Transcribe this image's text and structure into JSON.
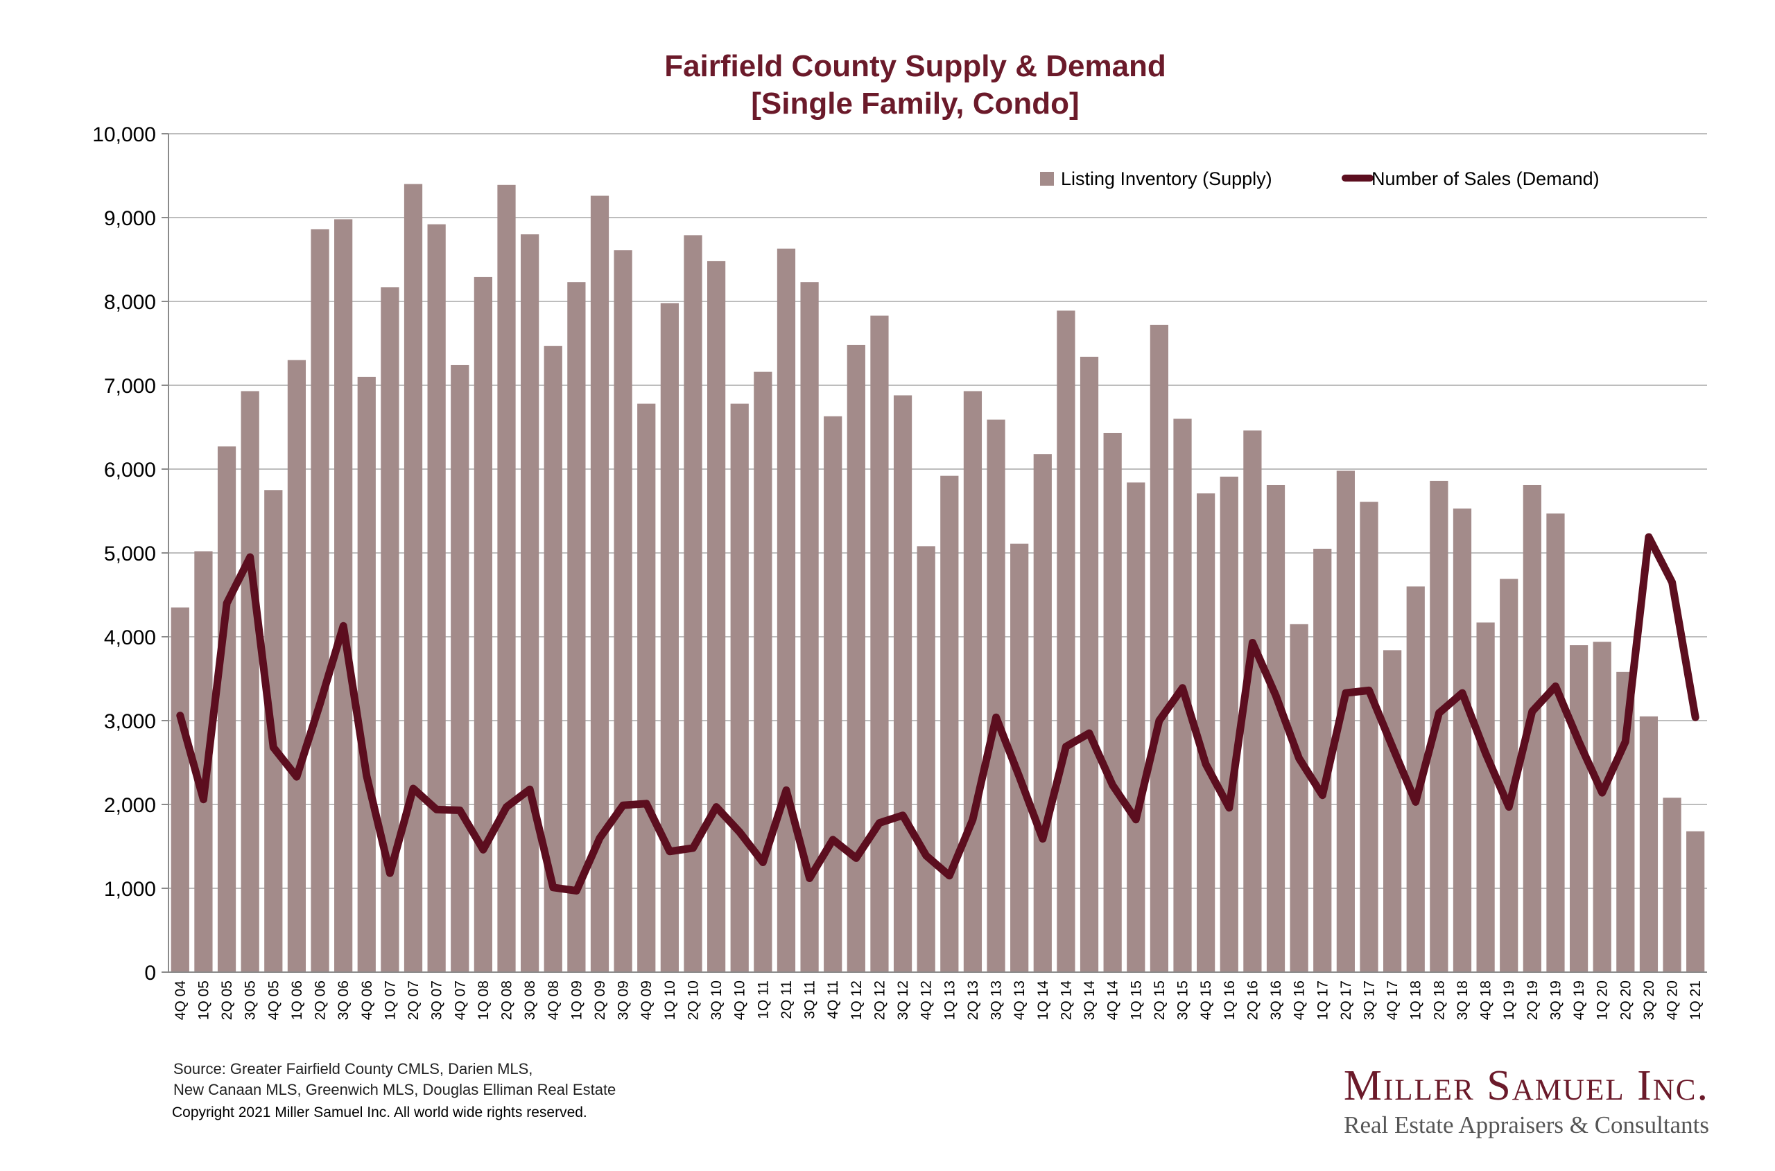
{
  "colors": {
    "bar": "#a38b8a",
    "line": "#5c0e1f",
    "title": "#6b1a2a",
    "grid": "#bdbdbd"
  },
  "chart_data": {
    "type": "bar",
    "title": "Fairfield County Supply & Demand",
    "subtitle": "[Single Family, Condo]",
    "xlabel": "",
    "ylabel": "",
    "ylim": [
      0,
      10000
    ],
    "yticks": [
      0,
      1000,
      2000,
      3000,
      4000,
      5000,
      6000,
      7000,
      8000,
      9000,
      10000
    ],
    "ytick_labels": [
      "0",
      "1,000",
      "2,000",
      "3,000",
      "4,000",
      "5,000",
      "6,000",
      "7,000",
      "8,000",
      "9,000",
      "10,000"
    ],
    "grid": true,
    "legend_position": "top-right",
    "categories": [
      "4Q 04",
      "1Q 05",
      "2Q 05",
      "3Q 05",
      "4Q 05",
      "1Q 06",
      "2Q 06",
      "3Q 06",
      "4Q 06",
      "1Q 07",
      "2Q 07",
      "3Q 07",
      "4Q 07",
      "1Q 08",
      "2Q 08",
      "3Q 08",
      "4Q 08",
      "1Q 09",
      "2Q 09",
      "3Q 09",
      "4Q 09",
      "1Q 10",
      "2Q 10",
      "3Q 10",
      "4Q 10",
      "1Q 11",
      "2Q 11",
      "3Q 11",
      "4Q 11",
      "1Q 12",
      "2Q 12",
      "3Q 12",
      "4Q 12",
      "1Q 13",
      "2Q 13",
      "3Q 13",
      "4Q 13",
      "1Q 14",
      "2Q 14",
      "3Q 14",
      "4Q 14",
      "1Q 15",
      "2Q 15",
      "3Q 15",
      "4Q 15",
      "1Q 16",
      "2Q 16",
      "3Q 16",
      "4Q 16",
      "1Q 17",
      "2Q 17",
      "3Q 17",
      "4Q 17",
      "1Q 18",
      "2Q 18",
      "3Q 18",
      "4Q 18",
      "1Q 19",
      "2Q 19",
      "3Q 19",
      "4Q 19",
      "1Q 20",
      "2Q 20",
      "3Q 20",
      "4Q 20",
      "1Q 21"
    ],
    "series": [
      {
        "name": "Listing Inventory (Supply)",
        "type": "bar",
        "values": [
          4350,
          5020,
          6270,
          6930,
          5750,
          7300,
          8860,
          8980,
          7100,
          8170,
          9400,
          8920,
          7240,
          8290,
          9390,
          8800,
          7470,
          8230,
          9260,
          8610,
          6780,
          7980,
          8790,
          8480,
          6780,
          7160,
          8630,
          8230,
          6630,
          7480,
          7830,
          6880,
          5080,
          5920,
          6930,
          6590,
          5110,
          6180,
          7890,
          7340,
          6430,
          5840,
          7720,
          6600,
          5710,
          5910,
          6460,
          5810,
          4150,
          5050,
          5980,
          5610,
          3840,
          4600,
          5860,
          5530,
          4170,
          4690,
          5810,
          5470,
          3900,
          3940,
          3580,
          3050,
          2080,
          1680
        ]
      },
      {
        "name": "Number of Sales (Demand)",
        "type": "line",
        "values": [
          3060,
          2060,
          4400,
          4950,
          2680,
          2330,
          3200,
          4130,
          2340,
          1180,
          2190,
          1940,
          1930,
          1460,
          1970,
          2180,
          1010,
          970,
          1600,
          1990,
          2010,
          1440,
          1480,
          1970,
          1670,
          1310,
          2170,
          1120,
          1580,
          1360,
          1780,
          1870,
          1390,
          1150,
          1820,
          3040,
          2330,
          1590,
          2690,
          2850,
          2230,
          1820,
          3000,
          3390,
          2480,
          1960,
          3930,
          3300,
          2550,
          2110,
          3330,
          3360,
          2690,
          2030,
          3090,
          3330,
          2610,
          1970,
          3110,
          3410,
          2750,
          2140,
          2750,
          5190,
          4650,
          3040
        ]
      }
    ]
  },
  "footer": {
    "source_line1": "Source:  Greater Fairfield County CMLS, Darien MLS,",
    "source_line2": "New Canaan MLS, Greenwich MLS, Douglas Elliman Real Estate",
    "copyright": "Copyright 2021 Miller Samuel Inc.  All world wide rights reserved."
  },
  "brand": {
    "name": "Miller Samuel Inc.",
    "tagline": "Real Estate Appraisers & Consultants"
  }
}
